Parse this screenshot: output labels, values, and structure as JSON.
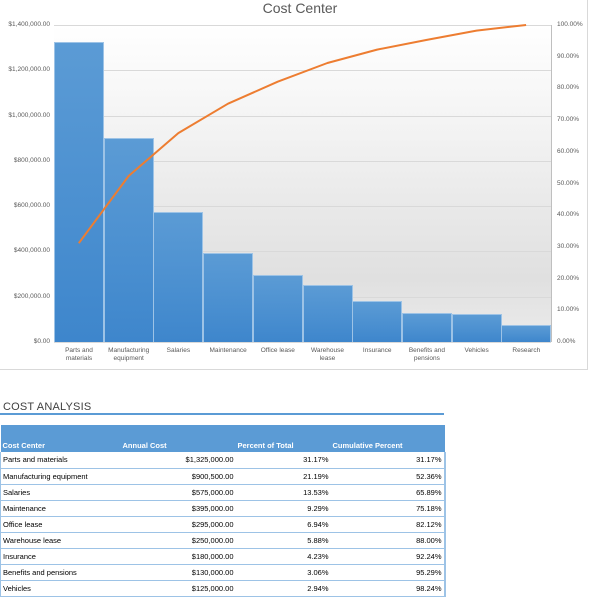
{
  "chart_data": {
    "type": "bar",
    "subtype": "pareto",
    "title": "Cost Center",
    "categories": [
      "Parts and materials",
      "Manufacturing equipment",
      "Salaries",
      "Maintenance",
      "Office lease",
      "Warehouse lease",
      "Insurance",
      "Benefits and pensions",
      "Vehicles",
      "Research"
    ],
    "category_display": [
      [
        "Parts and",
        "materials"
      ],
      [
        "Manufacturing",
        "equipment"
      ],
      [
        "Salaries"
      ],
      [
        "Maintenance"
      ],
      [
        "Office lease"
      ],
      [
        "Warehouse lease"
      ],
      [
        "Insurance"
      ],
      [
        "Benefits and",
        "pensions"
      ],
      [
        "Vehicles"
      ],
      [
        "Research"
      ]
    ],
    "series": [
      {
        "name": "Annual Cost",
        "type": "bar",
        "axis": "left",
        "color": "#5b9bd5",
        "values": [
          1325000,
          900500,
          575000,
          395000,
          295000,
          250000,
          180000,
          130000,
          125000,
          75000
        ]
      },
      {
        "name": "Cumulative Percent",
        "type": "line",
        "axis": "right",
        "color": "#ed7d31",
        "values": [
          31.17,
          52.36,
          65.89,
          75.18,
          82.12,
          88.0,
          92.24,
          95.29,
          98.24,
          100.0
        ]
      }
    ],
    "left_axis": {
      "min": 0,
      "max": 1400000,
      "ticks": [
        "$0.00",
        "$200,000.00",
        "$400,000.00",
        "$600,000.00",
        "$800,000.00",
        "$1,000,000.00",
        "$1,200,000.00",
        "$1,400,000.00"
      ]
    },
    "right_axis": {
      "min": 0,
      "max": 100,
      "ticks": [
        "0.00%",
        "10.00%",
        "20.00%",
        "30.00%",
        "40.00%",
        "50.00%",
        "60.00%",
        "70.00%",
        "80.00%",
        "90.00%",
        "100.00%"
      ]
    },
    "xlabel": "",
    "ylabel": "",
    "grid": true,
    "legend": "none"
  },
  "section": {
    "title": "COST ANALYSIS"
  },
  "table": {
    "headers": [
      "Cost Center",
      "Annual Cost",
      "Percent of Total",
      "Cumulative Percent"
    ],
    "rows": [
      [
        "Parts and materials",
        "$1,325,000.00",
        "31.17%",
        "31.17%"
      ],
      [
        "Manufacturing equipment",
        "$900,500.00",
        "21.19%",
        "52.36%"
      ],
      [
        "Salaries",
        "$575,000.00",
        "13.53%",
        "65.89%"
      ],
      [
        "Maintenance",
        "$395,000.00",
        "9.29%",
        "75.18%"
      ],
      [
        "Office lease",
        "$295,000.00",
        "6.94%",
        "82.12%"
      ],
      [
        "Warehouse lease",
        "$250,000.00",
        "5.88%",
        "88.00%"
      ],
      [
        "Insurance",
        "$180,000.00",
        "4.23%",
        "92.24%"
      ],
      [
        "Benefits and pensions",
        "$130,000.00",
        "3.06%",
        "95.29%"
      ],
      [
        "Vehicles",
        "$125,000.00",
        "2.94%",
        "98.24%"
      ]
    ]
  },
  "colors": {
    "bar": "#5b9bd5",
    "line": "#ed7d31",
    "header_bg": "#5b9bd5",
    "rule": "#5b9bd5"
  }
}
